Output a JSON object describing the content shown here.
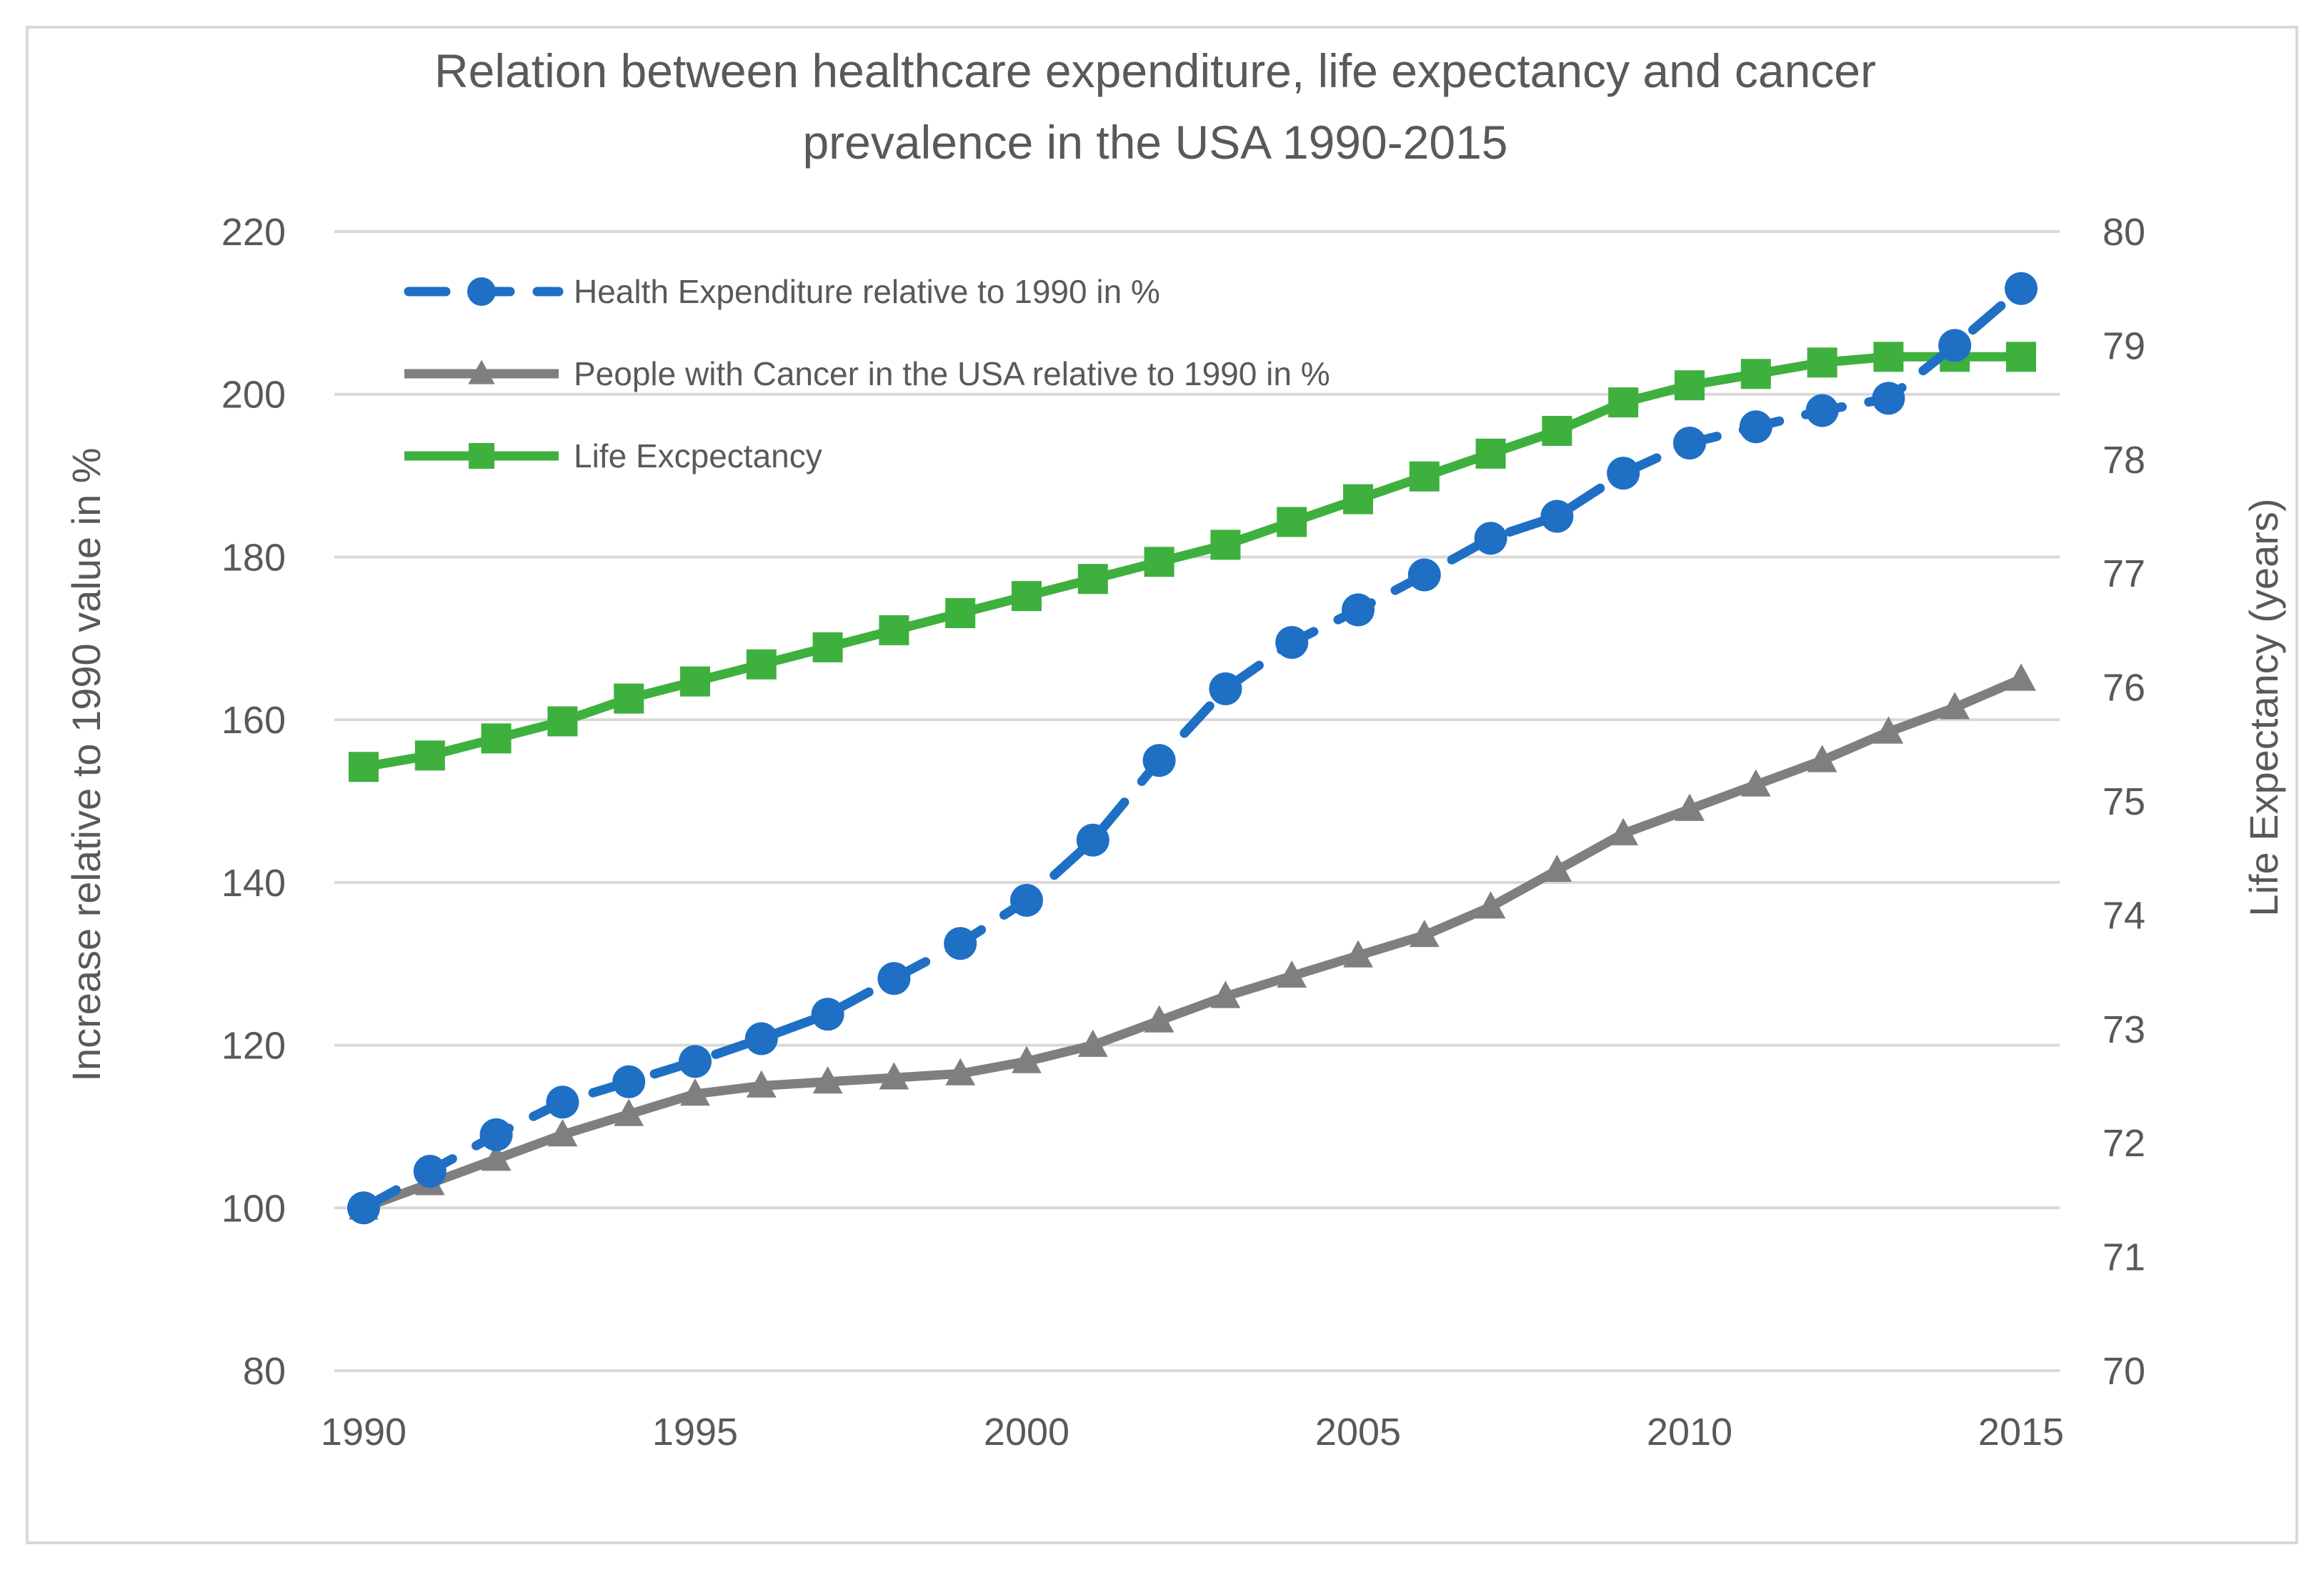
{
  "chart_data": {
    "type": "line",
    "title_lines": [
      "Relation between healthcare expenditure, life expectancy and cancer",
      "prevalence in the USA 1990-2015"
    ],
    "x": [
      1990,
      1991,
      1992,
      1993,
      1994,
      1995,
      1996,
      1997,
      1998,
      1999,
      2000,
      2001,
      2002,
      2003,
      2004,
      2005,
      2006,
      2007,
      2008,
      2009,
      2010,
      2011,
      2012,
      2013,
      2014,
      2015
    ],
    "x_ticks": [
      "1990",
      "1995",
      "2000",
      "2005",
      "2010",
      "2015"
    ],
    "xlim": [
      1990,
      2015
    ],
    "ylabel": "Increase relative to 1990 value in %",
    "y2label": "Life Expectancy (years)",
    "ylim": [
      80,
      220
    ],
    "y2lim": [
      70,
      80
    ],
    "y_ticks": [
      "220",
      "200",
      "180",
      "160",
      "140",
      "120",
      "100",
      "80"
    ],
    "y2_ticks": [
      "80",
      "79",
      "78",
      "77",
      "76",
      "75",
      "74",
      "73",
      "72",
      "71",
      "70"
    ],
    "grid": true,
    "legend_position": "top-left",
    "colors": {
      "health": "#1f6fc5",
      "cancer": "#7f7f7f",
      "life": "#3eb03e",
      "grid": "#d9d9d9",
      "text": "#595959"
    },
    "series": [
      {
        "name": "Health Expenditure relative to 1990 in %",
        "axis": "left",
        "marker": "circle",
        "style": "dashed",
        "color_key": "health",
        "values": [
          100,
          104.5,
          109,
          113,
          115.5,
          118,
          120.8,
          123.8,
          128.2,
          132.5,
          137.8,
          145.2,
          155,
          163.8,
          169.5,
          173.5,
          177.8,
          182.3,
          185,
          190.3,
          194,
          196,
          198,
          199.5,
          206,
          213
        ]
      },
      {
        "name": "People with Cancer in the USA relative to 1990 in %",
        "axis": "left",
        "marker": "triangle",
        "style": "solid",
        "color_key": "cancer",
        "values": [
          100,
          103,
          106,
          109,
          111.5,
          114,
          115,
          115.5,
          116,
          116.5,
          118,
          120,
          123,
          126,
          128.5,
          131,
          133.5,
          137,
          141.5,
          146,
          149,
          152,
          155,
          158.5,
          161.5,
          165
        ]
      },
      {
        "name": "Life Excpectancy",
        "axis": "right",
        "marker": "square",
        "style": "solid",
        "color_key": "life",
        "values": [
          75.3,
          75.4,
          75.55,
          75.7,
          75.9,
          76.05,
          76.2,
          76.35,
          76.5,
          76.65,
          76.8,
          76.95,
          77.1,
          77.25,
          77.45,
          77.65,
          77.85,
          78.05,
          78.25,
          78.5,
          78.65,
          78.75,
          78.85,
          78.9,
          78.9,
          78.9
        ]
      }
    ]
  }
}
